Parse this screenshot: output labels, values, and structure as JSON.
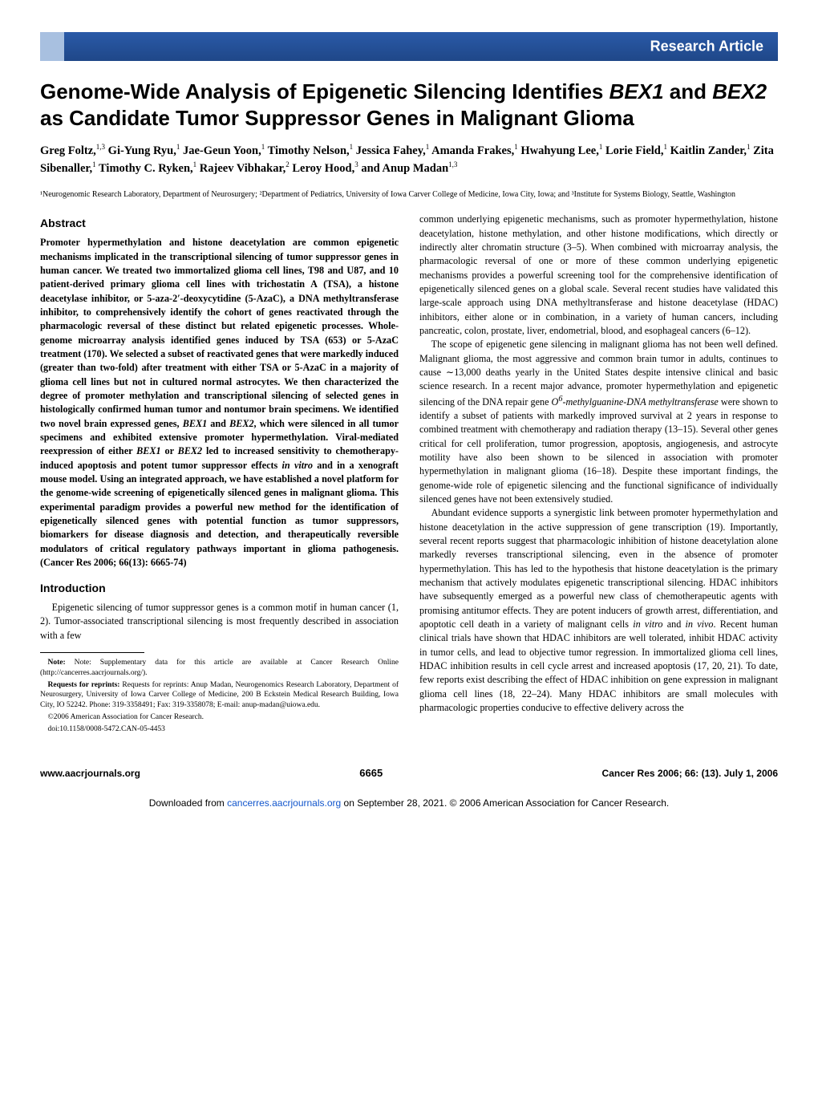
{
  "header_label": "Research Article",
  "title_html": "Genome-Wide Analysis of Epigenetic Silencing Identifies <em>BEX1</em> and <em>BEX2</em> as Candidate Tumor Suppressor Genes in Malignant Glioma",
  "authors_html": "Greg Foltz,<sup>1,3</sup> Gi-Yung Ryu,<sup>1</sup> Jae-Geun Yoon,<sup>1</sup> Timothy Nelson,<sup>1</sup> Jessica Fahey,<sup>1</sup> Amanda Frakes,<sup>1</sup> Hwahyung Lee,<sup>1</sup> Lorie Field,<sup>1</sup> Kaitlin Zander,<sup>1</sup> Zita Sibenaller,<sup>1</sup> Timothy C. Ryken,<sup>1</sup> Rajeev Vibhakar,<sup>2</sup> Leroy Hood,<sup>3</sup> and Anup Madan<sup>1,3</sup>",
  "affiliations": "¹Neurogenomic Research Laboratory, Department of Neurosurgery; ²Department of Pediatrics, University of Iowa Carver College of Medicine, Iowa City, Iowa; and ³Institute for Systems Biology, Seattle, Washington",
  "abstract_heading": "Abstract",
  "abstract_html": "Promoter hypermethylation and histone deacetylation are common epigenetic mechanisms implicated in the transcriptional silencing of tumor suppressor genes in human cancer. We treated two immortalized glioma cell lines, T98 and U87, and 10 patient-derived primary glioma cell lines with trichostatin A (TSA), a histone deacetylase inhibitor, or 5-aza-2′-deoxycytidine (5-AzaC), a DNA methyltransferase inhibitor, to comprehensively identify the cohort of genes reactivated through the pharmacologic reversal of these distinct but related epigenetic processes. Whole-genome microarray analysis identified genes induced by TSA (653) or 5-AzaC treatment (170). We selected a subset of reactivated genes that were markedly induced (greater than two-fold) after treatment with either TSA or 5-AzaC in a majority of glioma cell lines but not in cultured normal astrocytes. We then characterized the degree of promoter methylation and transcriptional silencing of selected genes in histologically confirmed human tumor and nontumor brain specimens. We identified two novel brain expressed genes, <em>BEX1</em> and <em>BEX2</em>, which were silenced in all tumor specimens and exhibited extensive promoter hypermethylation. Viral-mediated reexpression of either <em>BEX1</em> or <em>BEX2</em> led to increased sensitivity to chemotherapy-induced apoptosis and potent tumor suppressor effects <em>in vitro</em> and in a xenograft mouse model. Using an integrated approach, we have established a novel platform for the genome-wide screening of epigenetically silenced genes in malignant glioma. This experimental paradigm provides a powerful new method for the identification of epigenetically silenced genes with potential function as tumor suppressors, biomarkers for disease diagnosis and detection, and therapeutically reversible modulators of critical regulatory pathways important in glioma pathogenesis. (Cancer Res 2006; 66(13): 6665-74)",
  "intro_heading": "Introduction",
  "intro_p1": "Epigenetic silencing of tumor suppressor genes is a common motif in human cancer (1, 2). Tumor-associated transcriptional silencing is most frequently described in association with a few",
  "note_supp": "Note: Supplementary data for this article are available at Cancer Research Online (http://cancerres.aacrjournals.org/).",
  "note_req": "Requests for reprints: Anup Madan, Neurogenomics Research Laboratory, Department of Neurosurgery, University of Iowa Carver College of Medicine, 200 B Eckstein Medical Research Building, Iowa City, IO 52242. Phone: 319-3358491; Fax: 319-3358078; E-mail: anup-madan@uiowa.edu.",
  "note_copy": "©2006 American Association for Cancer Research.",
  "note_doi": "doi:10.1158/0008-5472.CAN-05-4453",
  "right_p1": "common underlying epigenetic mechanisms, such as promoter hypermethylation, histone deacetylation, histone methylation, and other histone modifications, which directly or indirectly alter chromatin structure (3–5). When combined with microarray analysis, the pharmacologic reversal of one or more of these common underlying epigenetic mechanisms provides a powerful screening tool for the comprehensive identification of epigenetically silenced genes on a global scale. Several recent studies have validated this large-scale approach using DNA methyltransferase and histone deacetylase (HDAC) inhibitors, either alone or in combination, in a variety of human cancers, including pancreatic, colon, prostate, liver, endometrial, blood, and esophageal cancers (6–12).",
  "right_p2_html": "The scope of epigenetic gene silencing in malignant glioma has not been well defined. Malignant glioma, the most aggressive and common brain tumor in adults, continues to cause ∼13,000 deaths yearly in the United States despite intensive clinical and basic science research. In a recent major advance, promoter hypermethylation and epigenetic silencing of the DNA repair gene <em>O<sup>6</sup>-methylguanine-DNA methyltransferase</em> were shown to identify a subset of patients with markedly improved survival at 2 years in response to combined treatment with chemotherapy and radiation therapy (13–15). Several other genes critical for cell proliferation, tumor progression, apoptosis, angiogenesis, and astrocyte motility have also been shown to be silenced in association with promoter hypermethylation in malignant glioma (16–18). Despite these important findings, the genome-wide role of epigenetic silencing and the functional significance of individually silenced genes have not been extensively studied.",
  "right_p3_html": "Abundant evidence supports a synergistic link between promoter hypermethylation and histone deacetylation in the active suppression of gene transcription (19). Importantly, several recent reports suggest that pharmacologic inhibition of histone deacetylation alone markedly reverses transcriptional silencing, even in the absence of promoter hypermethylation. This has led to the hypothesis that histone deacetylation is the primary mechanism that actively modulates epigenetic transcriptional silencing. HDAC inhibitors have subsequently emerged as a powerful new class of chemotherapeutic agents with promising antitumor effects. They are potent inducers of growth arrest, differentiation, and apoptotic cell death in a variety of malignant cells <em>in vitro</em> and <em>in vivo</em>. Recent human clinical trials have shown that HDAC inhibitors are well tolerated, inhibit HDAC activity in tumor cells, and lead to objective tumor regression. In immortalized glioma cell lines, HDAC inhibition results in cell cycle arrest and increased apoptosis (17, 20, 21). To date, few reports exist describing the effect of HDAC inhibition on gene expression in malignant glioma cell lines (18, 22–24). Many HDAC inhibitors are small molecules with pharmacologic properties conducive to effective delivery across the",
  "footer_left": "www.aacrjournals.org",
  "footer_center": "6665",
  "footer_right": "Cancer Res 2006; 66: (13). July 1, 2006",
  "download_pre": "Downloaded from ",
  "download_link": "cancerres.aacrjournals.org",
  "download_post": " on September 28, 2021. © 2006 American Association for Cancer Research."
}
